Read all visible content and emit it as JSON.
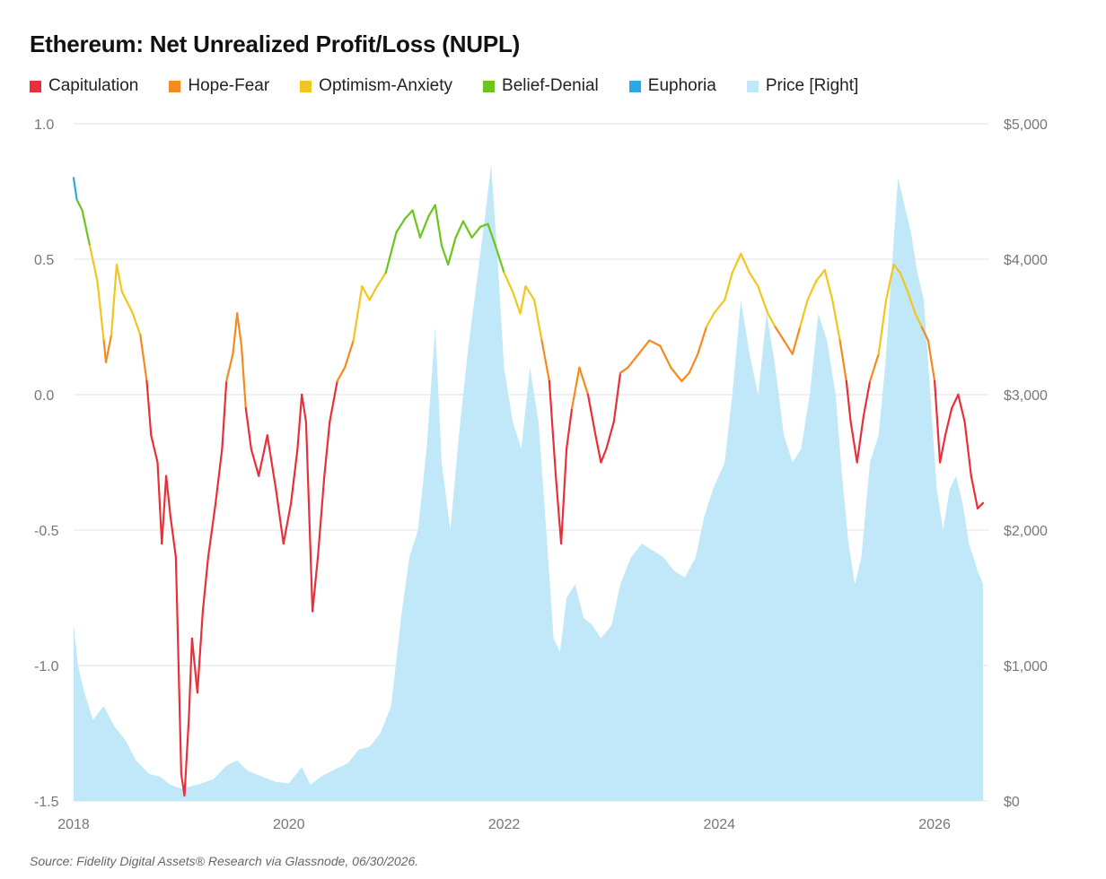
{
  "chart_data": {
    "type": "line",
    "title": "Ethereum: Net Unrealized Profit/Loss (NUPL)",
    "source": "Source: Fidelity Digital Assets® Research via Glassnode, 06/30/2026.",
    "legend": [
      {
        "name": "Capitulation",
        "color": "#e8303a"
      },
      {
        "name": "Hope-Fear",
        "color": "#f58a1f"
      },
      {
        "name": "Optimism-Anxiety",
        "color": "#f2c61f"
      },
      {
        "name": "Belief-Denial",
        "color": "#6cc51e"
      },
      {
        "name": "Euphoria",
        "color": "#2aa9e8"
      },
      {
        "name": "Price [Right]",
        "color": "#c0e8f8"
      }
    ],
    "x_ticks": [
      "2018",
      "2020",
      "2022",
      "2024",
      "2026"
    ],
    "x_range": [
      2018.0,
      2026.5
    ],
    "y_left": {
      "range": [
        -1.5,
        1.0
      ],
      "ticks": [
        "1.0",
        "0.5",
        "0.0",
        "-0.5",
        "-1.0",
        "-1.5"
      ]
    },
    "y_right": {
      "range": [
        0,
        5000
      ],
      "ticks": [
        "$5,000",
        "$4,000",
        "$3,000",
        "$2,000",
        "$1,000",
        "$0"
      ]
    },
    "zones": {
      "euphoria": 0.75,
      "belief": 0.5,
      "optimism": 0.25,
      "hope": 0.0
    },
    "series": [
      {
        "name": "NUPL",
        "points": [
          [
            2018.0,
            0.8
          ],
          [
            2018.03,
            0.72
          ],
          [
            2018.08,
            0.68
          ],
          [
            2018.15,
            0.55
          ],
          [
            2018.22,
            0.42
          ],
          [
            2018.28,
            0.2
          ],
          [
            2018.3,
            0.12
          ],
          [
            2018.35,
            0.22
          ],
          [
            2018.4,
            0.48
          ],
          [
            2018.45,
            0.38
          ],
          [
            2018.55,
            0.3
          ],
          [
            2018.62,
            0.22
          ],
          [
            2018.68,
            0.05
          ],
          [
            2018.72,
            -0.15
          ],
          [
            2018.78,
            -0.25
          ],
          [
            2018.82,
            -0.55
          ],
          [
            2018.86,
            -0.3
          ],
          [
            2018.9,
            -0.45
          ],
          [
            2018.95,
            -0.6
          ],
          [
            2019.0,
            -1.4
          ],
          [
            2019.03,
            -1.48
          ],
          [
            2019.07,
            -1.2
          ],
          [
            2019.1,
            -0.9
          ],
          [
            2019.15,
            -1.1
          ],
          [
            2019.2,
            -0.8
          ],
          [
            2019.25,
            -0.6
          ],
          [
            2019.32,
            -0.4
          ],
          [
            2019.38,
            -0.2
          ],
          [
            2019.42,
            0.05
          ],
          [
            2019.48,
            0.15
          ],
          [
            2019.52,
            0.3
          ],
          [
            2019.56,
            0.18
          ],
          [
            2019.6,
            -0.05
          ],
          [
            2019.65,
            -0.2
          ],
          [
            2019.72,
            -0.3
          ],
          [
            2019.8,
            -0.15
          ],
          [
            2019.88,
            -0.35
          ],
          [
            2019.95,
            -0.55
          ],
          [
            2020.02,
            -0.4
          ],
          [
            2020.08,
            -0.2
          ],
          [
            2020.12,
            0.0
          ],
          [
            2020.16,
            -0.1
          ],
          [
            2020.22,
            -0.8
          ],
          [
            2020.27,
            -0.6
          ],
          [
            2020.33,
            -0.3
          ],
          [
            2020.38,
            -0.1
          ],
          [
            2020.45,
            0.05
          ],
          [
            2020.52,
            0.1
          ],
          [
            2020.6,
            0.2
          ],
          [
            2020.68,
            0.4
          ],
          [
            2020.75,
            0.35
          ],
          [
            2020.82,
            0.4
          ],
          [
            2020.9,
            0.45
          ],
          [
            2021.0,
            0.6
          ],
          [
            2021.08,
            0.65
          ],
          [
            2021.15,
            0.68
          ],
          [
            2021.22,
            0.58
          ],
          [
            2021.3,
            0.66
          ],
          [
            2021.36,
            0.7
          ],
          [
            2021.42,
            0.55
          ],
          [
            2021.48,
            0.48
          ],
          [
            2021.55,
            0.58
          ],
          [
            2021.62,
            0.64
          ],
          [
            2021.7,
            0.58
          ],
          [
            2021.78,
            0.62
          ],
          [
            2021.85,
            0.63
          ],
          [
            2021.92,
            0.55
          ],
          [
            2022.0,
            0.45
          ],
          [
            2022.08,
            0.38
          ],
          [
            2022.15,
            0.3
          ],
          [
            2022.2,
            0.4
          ],
          [
            2022.28,
            0.35
          ],
          [
            2022.35,
            0.2
          ],
          [
            2022.42,
            0.05
          ],
          [
            2022.48,
            -0.3
          ],
          [
            2022.53,
            -0.55
          ],
          [
            2022.58,
            -0.2
          ],
          [
            2022.63,
            -0.05
          ],
          [
            2022.7,
            0.1
          ],
          [
            2022.78,
            0.0
          ],
          [
            2022.85,
            -0.15
          ],
          [
            2022.9,
            -0.25
          ],
          [
            2022.95,
            -0.2
          ],
          [
            2023.02,
            -0.1
          ],
          [
            2023.08,
            0.08
          ],
          [
            2023.15,
            0.1
          ],
          [
            2023.25,
            0.15
          ],
          [
            2023.35,
            0.2
          ],
          [
            2023.45,
            0.18
          ],
          [
            2023.55,
            0.1
          ],
          [
            2023.65,
            0.05
          ],
          [
            2023.72,
            0.08
          ],
          [
            2023.8,
            0.15
          ],
          [
            2023.88,
            0.25
          ],
          [
            2023.95,
            0.3
          ],
          [
            2024.05,
            0.35
          ],
          [
            2024.12,
            0.45
          ],
          [
            2024.2,
            0.52
          ],
          [
            2024.28,
            0.45
          ],
          [
            2024.36,
            0.4
          ],
          [
            2024.45,
            0.3
          ],
          [
            2024.52,
            0.25
          ],
          [
            2024.6,
            0.2
          ],
          [
            2024.68,
            0.15
          ],
          [
            2024.75,
            0.25
          ],
          [
            2024.82,
            0.35
          ],
          [
            2024.9,
            0.42
          ],
          [
            2024.98,
            0.46
          ],
          [
            2025.05,
            0.35
          ],
          [
            2025.12,
            0.2
          ],
          [
            2025.18,
            0.05
          ],
          [
            2025.22,
            -0.1
          ],
          [
            2025.28,
            -0.25
          ],
          [
            2025.34,
            -0.08
          ],
          [
            2025.4,
            0.05
          ],
          [
            2025.48,
            0.15
          ],
          [
            2025.55,
            0.35
          ],
          [
            2025.62,
            0.48
          ],
          [
            2025.68,
            0.45
          ],
          [
            2025.75,
            0.38
          ],
          [
            2025.82,
            0.3
          ],
          [
            2025.88,
            0.25
          ],
          [
            2025.94,
            0.2
          ],
          [
            2026.0,
            0.05
          ],
          [
            2026.05,
            -0.25
          ],
          [
            2026.1,
            -0.15
          ],
          [
            2026.16,
            -0.05
          ],
          [
            2026.22,
            0.0
          ],
          [
            2026.28,
            -0.1
          ],
          [
            2026.34,
            -0.3
          ],
          [
            2026.4,
            -0.42
          ],
          [
            2026.45,
            -0.4
          ]
        ]
      },
      {
        "name": "Price [Right]",
        "points": [
          [
            2018.0,
            1300
          ],
          [
            2018.04,
            1000
          ],
          [
            2018.1,
            800
          ],
          [
            2018.18,
            600
          ],
          [
            2018.28,
            700
          ],
          [
            2018.38,
            550
          ],
          [
            2018.48,
            450
          ],
          [
            2018.58,
            300
          ],
          [
            2018.7,
            200
          ],
          [
            2018.8,
            180
          ],
          [
            2018.9,
            120
          ],
          [
            2019.0,
            90
          ],
          [
            2019.15,
            120
          ],
          [
            2019.3,
            160
          ],
          [
            2019.42,
            260
          ],
          [
            2019.52,
            300
          ],
          [
            2019.62,
            220
          ],
          [
            2019.75,
            180
          ],
          [
            2019.88,
            140
          ],
          [
            2020.0,
            130
          ],
          [
            2020.12,
            250
          ],
          [
            2020.2,
            120
          ],
          [
            2020.3,
            180
          ],
          [
            2020.42,
            230
          ],
          [
            2020.55,
            280
          ],
          [
            2020.65,
            380
          ],
          [
            2020.75,
            400
          ],
          [
            2020.85,
            500
          ],
          [
            2020.95,
            700
          ],
          [
            2021.05,
            1400
          ],
          [
            2021.12,
            1800
          ],
          [
            2021.2,
            2000
          ],
          [
            2021.28,
            2600
          ],
          [
            2021.36,
            3500
          ],
          [
            2021.42,
            2500
          ],
          [
            2021.5,
            2000
          ],
          [
            2021.58,
            2700
          ],
          [
            2021.66,
            3300
          ],
          [
            2021.74,
            3800
          ],
          [
            2021.82,
            4300
          ],
          [
            2021.88,
            4700
          ],
          [
            2021.94,
            4000
          ],
          [
            2022.0,
            3200
          ],
          [
            2022.08,
            2800
          ],
          [
            2022.16,
            2600
          ],
          [
            2022.24,
            3200
          ],
          [
            2022.32,
            2800
          ],
          [
            2022.4,
            1900
          ],
          [
            2022.46,
            1200
          ],
          [
            2022.52,
            1100
          ],
          [
            2022.58,
            1500
          ],
          [
            2022.66,
            1600
          ],
          [
            2022.74,
            1350
          ],
          [
            2022.82,
            1300
          ],
          [
            2022.9,
            1200
          ],
          [
            2023.0,
            1300
          ],
          [
            2023.08,
            1600
          ],
          [
            2023.18,
            1800
          ],
          [
            2023.28,
            1900
          ],
          [
            2023.38,
            1850
          ],
          [
            2023.48,
            1800
          ],
          [
            2023.58,
            1700
          ],
          [
            2023.68,
            1650
          ],
          [
            2023.78,
            1800
          ],
          [
            2023.86,
            2100
          ],
          [
            2023.94,
            2300
          ],
          [
            2024.05,
            2500
          ],
          [
            2024.12,
            3000
          ],
          [
            2024.2,
            3700
          ],
          [
            2024.28,
            3300
          ],
          [
            2024.36,
            3000
          ],
          [
            2024.44,
            3600
          ],
          [
            2024.52,
            3200
          ],
          [
            2024.6,
            2700
          ],
          [
            2024.68,
            2500
          ],
          [
            2024.76,
            2600
          ],
          [
            2024.84,
            3000
          ],
          [
            2024.92,
            3600
          ],
          [
            2025.0,
            3400
          ],
          [
            2025.08,
            3000
          ],
          [
            2025.14,
            2400
          ],
          [
            2025.2,
            1900
          ],
          [
            2025.26,
            1600
          ],
          [
            2025.32,
            1800
          ],
          [
            2025.4,
            2500
          ],
          [
            2025.48,
            2700
          ],
          [
            2025.54,
            3200
          ],
          [
            2025.6,
            3900
          ],
          [
            2025.66,
            4600
          ],
          [
            2025.72,
            4400
          ],
          [
            2025.78,
            4200
          ],
          [
            2025.84,
            3900
          ],
          [
            2025.9,
            3700
          ],
          [
            2025.96,
            3000
          ],
          [
            2026.02,
            2300
          ],
          [
            2026.08,
            2000
          ],
          [
            2026.14,
            2300
          ],
          [
            2026.2,
            2400
          ],
          [
            2026.26,
            2200
          ],
          [
            2026.32,
            1900
          ],
          [
            2026.4,
            1700
          ],
          [
            2026.45,
            1600
          ]
        ]
      }
    ]
  }
}
